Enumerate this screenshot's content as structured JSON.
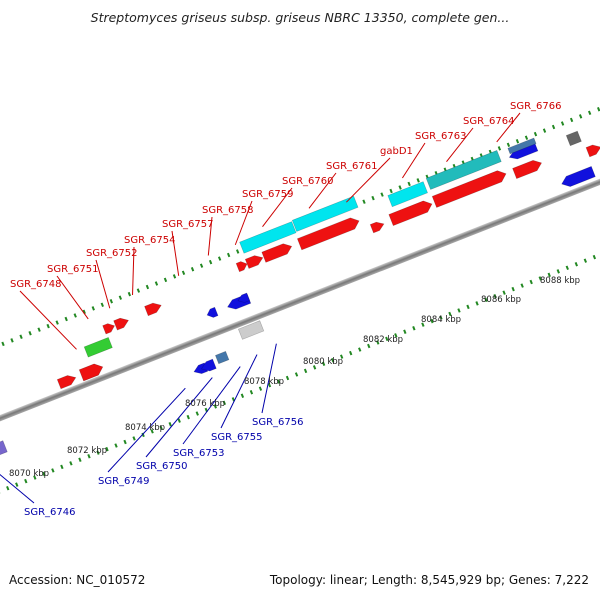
{
  "title": "Streptomyces griseus subsp. griseus NBRC 13350, complete gen...",
  "footer": {
    "accession": "Accession: NC_010572",
    "topology": "Topology: linear; Length: 8,545,929 bp; Genes: 7,222"
  },
  "colors": {
    "forward_gene": "#ee1111",
    "reverse_gene": "#1111dd",
    "forward_label": "#cc0000",
    "reverse_label": "#0000aa",
    "highlight_cyan": "#00e5ee",
    "highlight_teal": "#22bbbb",
    "highlight_green": "#33cc33",
    "highlight_purple": "#7766cc",
    "highlight_steel": "#4477aa",
    "highlight_gray": "#666666",
    "highlight_lightgray": "#cccccc",
    "backbone": "#888888",
    "tick": "#228822"
  },
  "axis": {
    "unit": "kbp",
    "tick_labels": [
      "8070 kbp",
      "8072 kbp",
      "8074 kbp",
      "8076 kbp",
      "8078 kbp",
      "8080 kbp",
      "8082 kbp",
      "8084 kbp",
      "8086 kbp",
      "8088 kbp"
    ]
  },
  "forward_labels": [
    "SGR_6748",
    "SGR_6751",
    "SGR_6752",
    "SGR_6754",
    "SGR_6757",
    "SGR_6758",
    "SGR_6759",
    "SGR_6760",
    "SGR_6761",
    "gabD1",
    "SGR_6763",
    "SGR_6764",
    "SGR_6766"
  ],
  "reverse_labels": [
    "SGR_6746",
    "SGR_6749",
    "SGR_6750",
    "SGR_6753",
    "SGR_6755",
    "SGR_6756"
  ]
}
